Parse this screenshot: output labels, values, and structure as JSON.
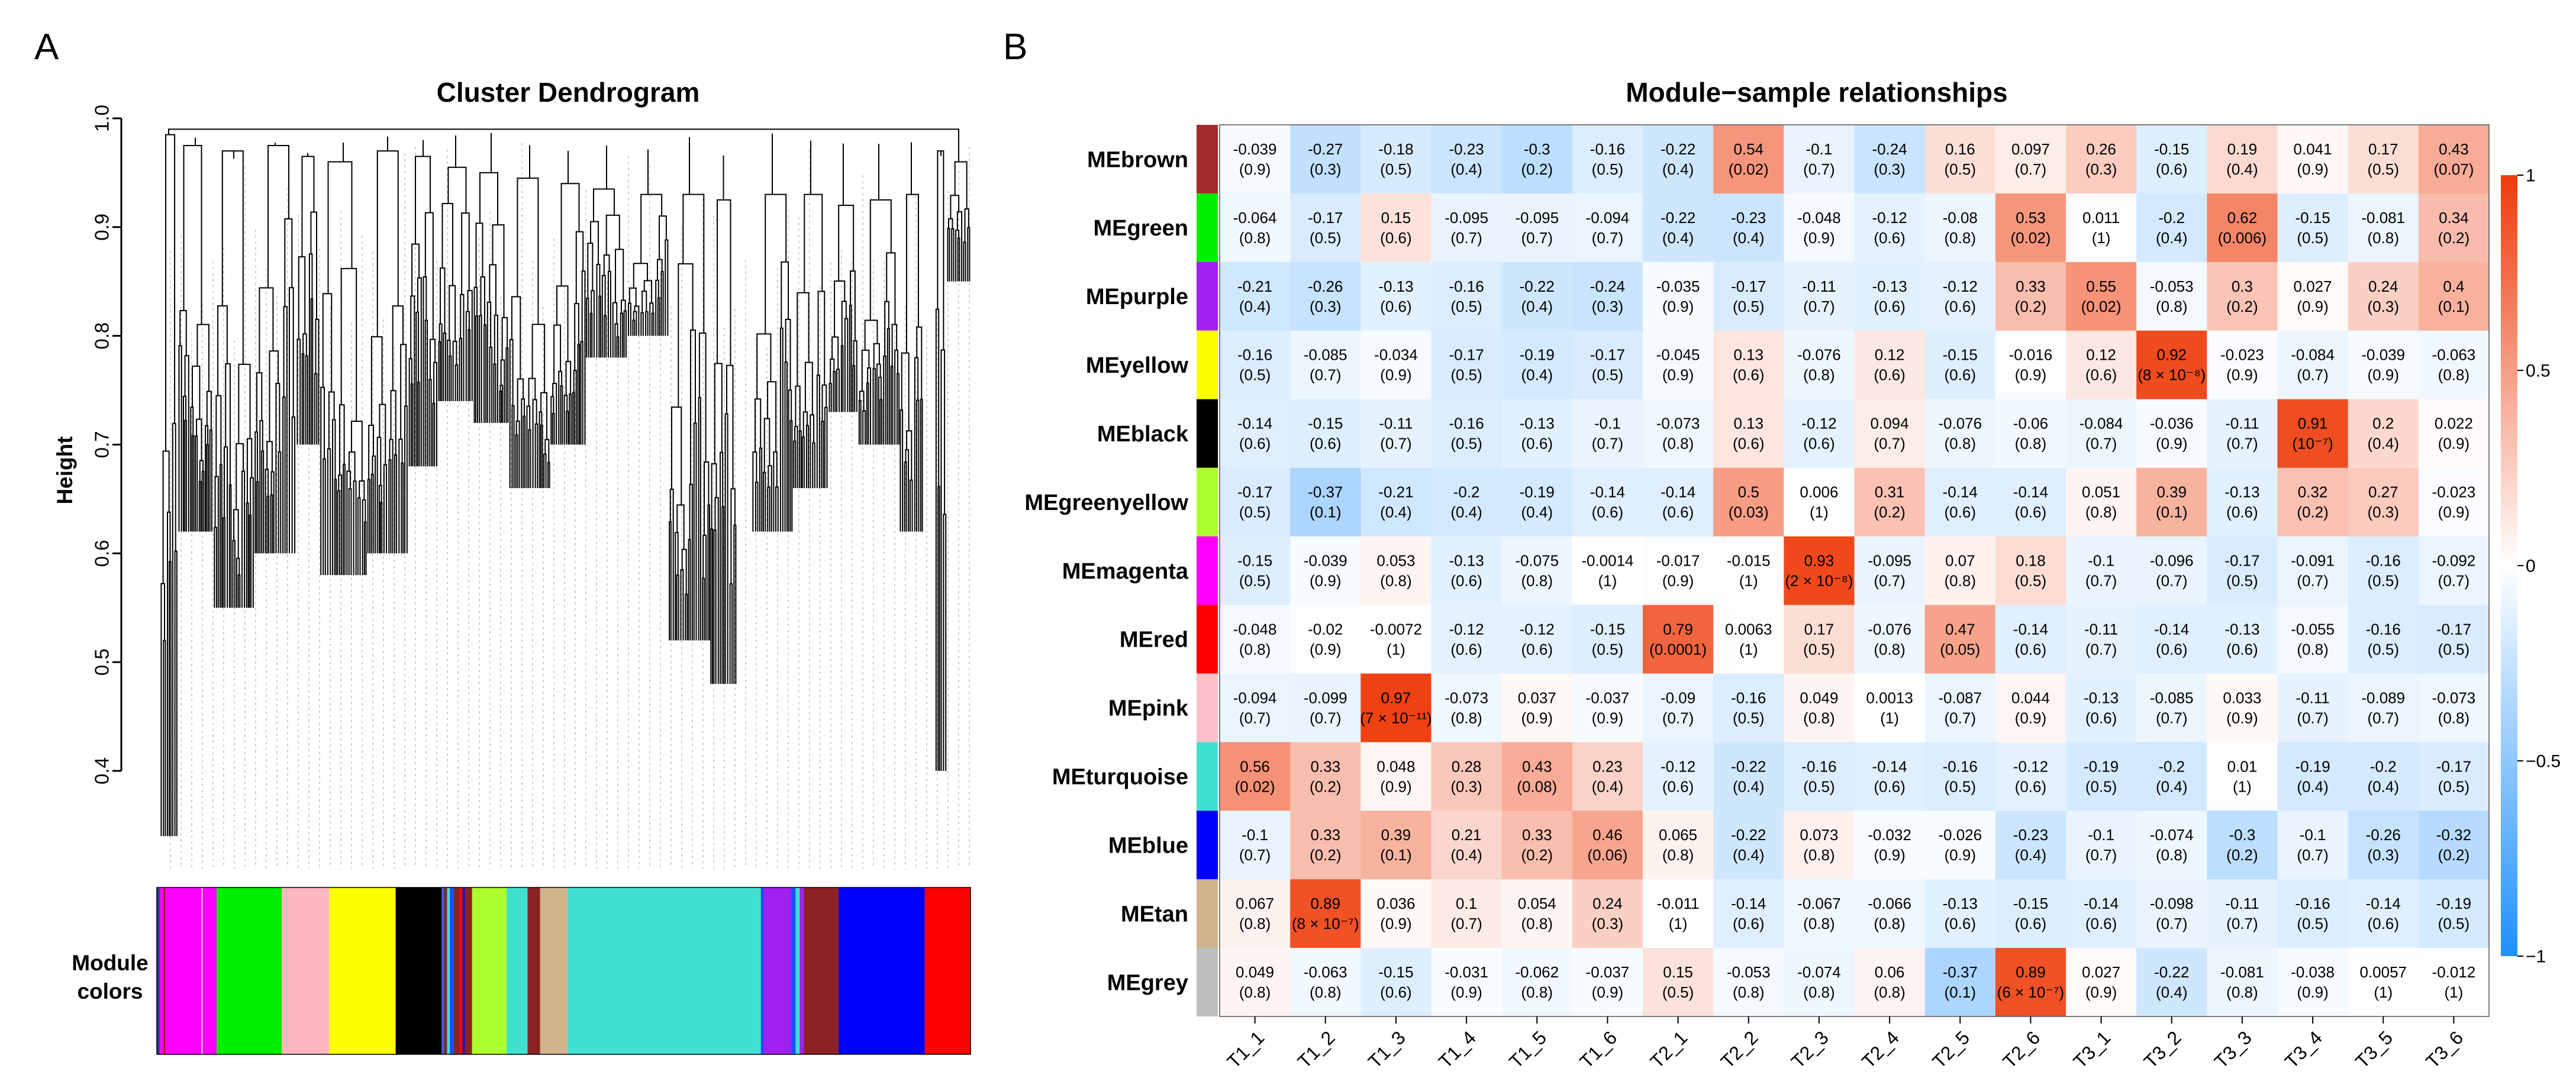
{
  "panels": {
    "a": "A",
    "b": "B"
  },
  "dendrogram": {
    "title": "Cluster Dendrogram",
    "ylabel": "Height",
    "yticks": [
      "0.4",
      "0.5",
      "0.6",
      "0.7",
      "0.8",
      "0.9",
      "1.0"
    ],
    "module_colors_label": [
      "Module",
      "colors"
    ],
    "color_bar": [
      {
        "color": "#1e3a8a",
        "w": 2
      },
      {
        "color": "#ff00ff",
        "w": 3
      },
      {
        "color": "#8b2323",
        "w": 1
      },
      {
        "color": "#ff00ff",
        "w": 26
      },
      {
        "color": "#d8d8d8",
        "w": 1
      },
      {
        "color": "#ff00ff",
        "w": 10
      },
      {
        "color": "#00ee00",
        "w": 42
      },
      {
        "color": "#00ee00",
        "w": 5
      },
      {
        "color": "#ffb6c1",
        "w": 34
      },
      {
        "color": "#ffff00",
        "w": 48
      },
      {
        "color": "#000000",
        "w": 33
      },
      {
        "color": "#3b5bdb",
        "w": 2
      },
      {
        "color": "#8b2323",
        "w": 2
      },
      {
        "color": "#40e0d0",
        "w": 2
      },
      {
        "color": "#1f4fff",
        "w": 3
      },
      {
        "color": "#8b2323",
        "w": 4
      },
      {
        "color": "#ff0000",
        "w": 2
      },
      {
        "color": "#2020aa",
        "w": 2
      },
      {
        "color": "#8b2323",
        "w": 5
      },
      {
        "color": "#adff2f",
        "w": 25
      },
      {
        "color": "#40e0d0",
        "w": 15
      },
      {
        "color": "#8b2323",
        "w": 9
      },
      {
        "color": "#d2b48c",
        "w": 20
      },
      {
        "color": "#40e0d0",
        "w": 139
      },
      {
        "color": "#1f4fff",
        "w": 2
      },
      {
        "color": "#a020f0",
        "w": 20
      },
      {
        "color": "#1f4fff",
        "w": 3
      },
      {
        "color": "#40e0d0",
        "w": 3
      },
      {
        "color": "#a020f0",
        "w": 3
      },
      {
        "color": "#8b2323",
        "w": 25
      },
      {
        "color": "#0000ff",
        "w": 62
      },
      {
        "color": "#ff0000",
        "w": 33
      }
    ]
  },
  "chart_data": {
    "type": "heatmap",
    "title": "Module−sample relationships",
    "rows": [
      {
        "name": "MEbrown",
        "color": "#a52a2a"
      },
      {
        "name": "MEgreen",
        "color": "#00ee00"
      },
      {
        "name": "MEpurple",
        "color": "#a020f0"
      },
      {
        "name": "MEyellow",
        "color": "#ffff00"
      },
      {
        "name": "MEblack",
        "color": "#000000"
      },
      {
        "name": "MEgreenyellow",
        "color": "#adff2f"
      },
      {
        "name": "MEmagenta",
        "color": "#ff00ff"
      },
      {
        "name": "MEred",
        "color": "#ff0000"
      },
      {
        "name": "MEpink",
        "color": "#ffc0cb"
      },
      {
        "name": "MEturquoise",
        "color": "#40e0d0"
      },
      {
        "name": "MEblue",
        "color": "#0000ff"
      },
      {
        "name": "MEtan",
        "color": "#d2b48c"
      },
      {
        "name": "MEgrey",
        "color": "#bebebe"
      }
    ],
    "columns": [
      "T1_1",
      "T1_2",
      "T1_3",
      "T1_4",
      "T1_5",
      "T1_6",
      "T2_1",
      "T2_2",
      "T2_3",
      "T2_4",
      "T2_5",
      "T2_6",
      "T3_1",
      "T3_2",
      "T3_3",
      "T3_4",
      "T3_5",
      "T3_6"
    ],
    "values": [
      [
        -0.039,
        -0.27,
        -0.18,
        -0.23,
        -0.3,
        -0.16,
        -0.22,
        0.54,
        -0.1,
        -0.24,
        0.16,
        0.097,
        0.26,
        -0.15,
        0.19,
        0.041,
        0.17,
        0.43
      ],
      [
        -0.064,
        -0.17,
        0.15,
        -0.095,
        -0.095,
        -0.094,
        -0.22,
        -0.23,
        -0.048,
        -0.12,
        -0.08,
        0.53,
        0.011,
        -0.2,
        0.62,
        -0.15,
        -0.081,
        0.34
      ],
      [
        -0.21,
        -0.26,
        -0.13,
        -0.16,
        -0.22,
        -0.24,
        -0.035,
        -0.17,
        -0.11,
        -0.13,
        -0.12,
        0.33,
        0.55,
        -0.053,
        0.3,
        0.027,
        0.24,
        0.4
      ],
      [
        -0.16,
        -0.085,
        -0.034,
        -0.17,
        -0.19,
        -0.17,
        -0.045,
        0.13,
        -0.076,
        0.12,
        -0.15,
        -0.016,
        0.12,
        0.92,
        -0.023,
        -0.084,
        -0.039,
        -0.063
      ],
      [
        -0.14,
        -0.15,
        -0.11,
        -0.16,
        -0.13,
        -0.1,
        -0.073,
        0.13,
        -0.12,
        0.094,
        -0.076,
        -0.06,
        -0.084,
        -0.036,
        -0.11,
        0.91,
        0.2,
        0.022
      ],
      [
        -0.17,
        -0.37,
        -0.21,
        -0.2,
        -0.19,
        -0.14,
        -0.14,
        0.5,
        0.006,
        0.31,
        -0.14,
        -0.14,
        0.051,
        0.39,
        -0.13,
        0.32,
        0.27,
        -0.023
      ],
      [
        -0.15,
        -0.039,
        0.053,
        -0.13,
        -0.075,
        -0.0014,
        -0.017,
        -0.015,
        0.93,
        -0.095,
        0.07,
        0.18,
        -0.1,
        -0.096,
        -0.17,
        -0.091,
        -0.16,
        -0.092
      ],
      [
        -0.048,
        -0.02,
        -0.0072,
        -0.12,
        -0.12,
        -0.15,
        0.79,
        0.0063,
        0.17,
        -0.076,
        0.47,
        -0.14,
        -0.11,
        -0.14,
        -0.13,
        -0.055,
        -0.16,
        -0.17
      ],
      [
        -0.094,
        -0.099,
        0.97,
        -0.073,
        0.037,
        -0.037,
        -0.09,
        -0.16,
        0.049,
        0.0013,
        -0.087,
        0.044,
        -0.13,
        -0.085,
        0.033,
        -0.11,
        -0.089,
        -0.073
      ],
      [
        0.56,
        0.33,
        0.048,
        0.28,
        0.43,
        0.23,
        -0.12,
        -0.22,
        -0.16,
        -0.14,
        -0.16,
        -0.12,
        -0.19,
        -0.2,
        0.01,
        -0.19,
        -0.2,
        -0.17
      ],
      [
        -0.1,
        0.33,
        0.39,
        0.21,
        0.33,
        0.46,
        0.065,
        -0.22,
        0.073,
        -0.032,
        -0.026,
        -0.23,
        -0.1,
        -0.074,
        -0.3,
        -0.1,
        -0.26,
        -0.32
      ],
      [
        0.067,
        0.89,
        0.036,
        0.1,
        0.054,
        0.24,
        -0.011,
        -0.14,
        -0.067,
        -0.066,
        -0.13,
        -0.15,
        -0.14,
        -0.098,
        -0.11,
        -0.16,
        -0.14,
        -0.19
      ],
      [
        0.049,
        -0.063,
        -0.15,
        -0.031,
        -0.062,
        -0.037,
        0.15,
        -0.053,
        -0.074,
        0.06,
        -0.37,
        0.89,
        0.027,
        -0.22,
        -0.081,
        -0.038,
        0.0057,
        -0.012
      ]
    ],
    "value_labels": [
      [
        "-0.039",
        "-0.27",
        "-0.18",
        "-0.23",
        "-0.3",
        "-0.16",
        "-0.22",
        "0.54",
        "-0.1",
        "-0.24",
        "0.16",
        "0.097",
        "0.26",
        "-0.15",
        "0.19",
        "0.041",
        "0.17",
        "0.43"
      ],
      [
        "-0.064",
        "-0.17",
        "0.15",
        "-0.095",
        "-0.095",
        "-0.094",
        "-0.22",
        "-0.23",
        "-0.048",
        "-0.12",
        "-0.08",
        "0.53",
        "0.011",
        "-0.2",
        "0.62",
        "-0.15",
        "-0.081",
        "0.34"
      ],
      [
        "-0.21",
        "-0.26",
        "-0.13",
        "-0.16",
        "-0.22",
        "-0.24",
        "-0.035",
        "-0.17",
        "-0.11",
        "-0.13",
        "-0.12",
        "0.33",
        "0.55",
        "-0.053",
        "0.3",
        "0.027",
        "0.24",
        "0.4"
      ],
      [
        "-0.16",
        "-0.085",
        "-0.034",
        "-0.17",
        "-0.19",
        "-0.17",
        "-0.045",
        "0.13",
        "-0.076",
        "0.12",
        "-0.15",
        "-0.016",
        "0.12",
        "0.92",
        "-0.023",
        "-0.084",
        "-0.039",
        "-0.063"
      ],
      [
        "-0.14",
        "-0.15",
        "-0.11",
        "-0.16",
        "-0.13",
        "-0.1",
        "-0.073",
        "0.13",
        "-0.12",
        "0.094",
        "-0.076",
        "-0.06",
        "-0.084",
        "-0.036",
        "-0.11",
        "0.91",
        "0.2",
        "0.022"
      ],
      [
        "-0.17",
        "-0.37",
        "-0.21",
        "-0.2",
        "-0.19",
        "-0.14",
        "-0.14",
        "0.5",
        "0.006",
        "0.31",
        "-0.14",
        "-0.14",
        "0.051",
        "0.39",
        "-0.13",
        "0.32",
        "0.27",
        "-0.023"
      ],
      [
        "-0.15",
        "-0.039",
        "0.053",
        "-0.13",
        "-0.075",
        "-0.0014",
        "-0.017",
        "-0.015",
        "0.93",
        "-0.095",
        "0.07",
        "0.18",
        "-0.1",
        "-0.096",
        "-0.17",
        "-0.091",
        "-0.16",
        "-0.092"
      ],
      [
        "-0.048",
        "-0.02",
        "-0.0072",
        "-0.12",
        "-0.12",
        "-0.15",
        "0.79",
        "0.0063",
        "0.17",
        "-0.076",
        "0.47",
        "-0.14",
        "-0.11",
        "-0.14",
        "-0.13",
        "-0.055",
        "-0.16",
        "-0.17"
      ],
      [
        "-0.094",
        "-0.099",
        "0.97",
        "-0.073",
        "0.037",
        "-0.037",
        "-0.09",
        "-0.16",
        "0.049",
        "0.0013",
        "-0.087",
        "0.044",
        "-0.13",
        "-0.085",
        "0.033",
        "-0.11",
        "-0.089",
        "-0.073"
      ],
      [
        "0.56",
        "0.33",
        "0.048",
        "0.28",
        "0.43",
        "0.23",
        "-0.12",
        "-0.22",
        "-0.16",
        "-0.14",
        "-0.16",
        "-0.12",
        "-0.19",
        "-0.2",
        "0.01",
        "-0.19",
        "-0.2",
        "-0.17"
      ],
      [
        "-0.1",
        "0.33",
        "0.39",
        "0.21",
        "0.33",
        "0.46",
        "0.065",
        "-0.22",
        "0.073",
        "-0.032",
        "-0.026",
        "-0.23",
        "-0.1",
        "-0.074",
        "-0.3",
        "-0.1",
        "-0.26",
        "-0.32"
      ],
      [
        "0.067",
        "0.89",
        "0.036",
        "0.1",
        "0.054",
        "0.24",
        "-0.011",
        "-0.14",
        "-0.067",
        "-0.066",
        "-0.13",
        "-0.15",
        "-0.14",
        "-0.098",
        "-0.11",
        "-0.16",
        "-0.14",
        "-0.19"
      ],
      [
        "0.049",
        "-0.063",
        "-0.15",
        "-0.031",
        "-0.062",
        "-0.037",
        "0.15",
        "-0.053",
        "-0.074",
        "0.06",
        "-0.37",
        "0.89",
        "0.027",
        "-0.22",
        "-0.081",
        "-0.038",
        "0.0057",
        "-0.012"
      ]
    ],
    "pvalues": [
      [
        "(0.9)",
        "(0.3)",
        "(0.5)",
        "(0.4)",
        "(0.2)",
        "(0.5)",
        "(0.4)",
        "(0.02)",
        "(0.7)",
        "(0.3)",
        "(0.5)",
        "(0.7)",
        "(0.3)",
        "(0.6)",
        "(0.4)",
        "(0.9)",
        "(0.5)",
        "(0.07)"
      ],
      [
        "(0.8)",
        "(0.5)",
        "(0.6)",
        "(0.7)",
        "(0.7)",
        "(0.7)",
        "(0.4)",
        "(0.4)",
        "(0.9)",
        "(0.6)",
        "(0.8)",
        "(0.02)",
        "(1)",
        "(0.4)",
        "(0.006)",
        "(0.5)",
        "(0.8)",
        "(0.2)"
      ],
      [
        "(0.4)",
        "(0.3)",
        "(0.6)",
        "(0.5)",
        "(0.4)",
        "(0.3)",
        "(0.9)",
        "(0.5)",
        "(0.7)",
        "(0.6)",
        "(0.6)",
        "(0.2)",
        "(0.02)",
        "(0.8)",
        "(0.2)",
        "(0.9)",
        "(0.3)",
        "(0.1)"
      ],
      [
        "(0.5)",
        "(0.7)",
        "(0.9)",
        "(0.5)",
        "(0.4)",
        "(0.5)",
        "(0.9)",
        "(0.6)",
        "(0.8)",
        "(0.6)",
        "(0.6)",
        "(0.9)",
        "(0.6)",
        "(8 × 10⁻⁸)",
        "(0.9)",
        "(0.7)",
        "(0.9)",
        "(0.8)"
      ],
      [
        "(0.6)",
        "(0.6)",
        "(0.7)",
        "(0.5)",
        "(0.6)",
        "(0.7)",
        "(0.8)",
        "(0.6)",
        "(0.6)",
        "(0.7)",
        "(0.8)",
        "(0.8)",
        "(0.7)",
        "(0.9)",
        "(0.7)",
        "(10⁻⁷)",
        "(0.4)",
        "(0.9)"
      ],
      [
        "(0.5)",
        "(0.1)",
        "(0.4)",
        "(0.4)",
        "(0.4)",
        "(0.6)",
        "(0.6)",
        "(0.03)",
        "(1)",
        "(0.2)",
        "(0.6)",
        "(0.6)",
        "(0.8)",
        "(0.1)",
        "(0.6)",
        "(0.2)",
        "(0.3)",
        "(0.9)"
      ],
      [
        "(0.5)",
        "(0.9)",
        "(0.8)",
        "(0.6)",
        "(0.8)",
        "(1)",
        "(0.9)",
        "(1)",
        "(2 × 10⁻⁸)",
        "(0.7)",
        "(0.8)",
        "(0.5)",
        "(0.7)",
        "(0.7)",
        "(0.5)",
        "(0.7)",
        "(0.5)",
        "(0.7)"
      ],
      [
        "(0.8)",
        "(0.9)",
        "(1)",
        "(0.6)",
        "(0.6)",
        "(0.5)",
        "(0.0001)",
        "(1)",
        "(0.5)",
        "(0.8)",
        "(0.05)",
        "(0.6)",
        "(0.7)",
        "(0.6)",
        "(0.6)",
        "(0.8)",
        "(0.5)",
        "(0.5)"
      ],
      [
        "(0.7)",
        "(0.7)",
        "(7 × 10⁻¹¹)",
        "(0.8)",
        "(0.9)",
        "(0.9)",
        "(0.7)",
        "(0.5)",
        "(0.8)",
        "(1)",
        "(0.7)",
        "(0.9)",
        "(0.6)",
        "(0.7)",
        "(0.9)",
        "(0.7)",
        "(0.7)",
        "(0.8)"
      ],
      [
        "(0.02)",
        "(0.2)",
        "(0.9)",
        "(0.3)",
        "(0.08)",
        "(0.4)",
        "(0.6)",
        "(0.4)",
        "(0.5)",
        "(0.6)",
        "(0.5)",
        "(0.6)",
        "(0.5)",
        "(0.4)",
        "(1)",
        "(0.4)",
        "(0.4)",
        "(0.5)"
      ],
      [
        "(0.7)",
        "(0.2)",
        "(0.1)",
        "(0.4)",
        "(0.2)",
        "(0.06)",
        "(0.8)",
        "(0.4)",
        "(0.8)",
        "(0.9)",
        "(0.9)",
        "(0.4)",
        "(0.7)",
        "(0.8)",
        "(0.2)",
        "(0.7)",
        "(0.3)",
        "(0.2)"
      ],
      [
        "(0.8)",
        "(8 × 10⁻⁷)",
        "(0.9)",
        "(0.7)",
        "(0.8)",
        "(0.3)",
        "(1)",
        "(0.6)",
        "(0.8)",
        "(0.8)",
        "(0.6)",
        "(0.6)",
        "(0.6)",
        "(0.7)",
        "(0.7)",
        "(0.5)",
        "(0.6)",
        "(0.5)"
      ],
      [
        "(0.8)",
        "(0.8)",
        "(0.6)",
        "(0.9)",
        "(0.8)",
        "(0.9)",
        "(0.5)",
        "(0.8)",
        "(0.8)",
        "(0.8)",
        "(0.1)",
        "(6 × 10⁻⁷)",
        "(0.9)",
        "(0.4)",
        "(0.8)",
        "(0.9)",
        "(1)",
        "(1)"
      ]
    ],
    "colorbar": {
      "range": [
        -1,
        1
      ],
      "ticks": [
        "−1",
        "−0.5",
        "0",
        "0.5",
        "1"
      ],
      "low_color": "#1e90ff",
      "mid_color": "#ffffff",
      "high_color": "#ee3b0a"
    }
  }
}
